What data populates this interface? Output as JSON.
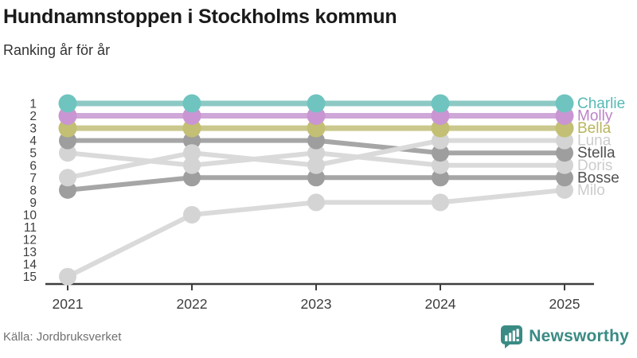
{
  "header": {
    "title": "Hundnamnstoppen i Stockholms kommun",
    "subtitle": "Ranking år för år"
  },
  "footer": {
    "source": "Källa: Jordbruksverket",
    "brand": "Newsworthy",
    "brand_color": "#3a8b84"
  },
  "chart_data": {
    "type": "line",
    "subtype": "bump-ranking",
    "x": [
      "2021",
      "2022",
      "2023",
      "2024",
      "2025"
    ],
    "series": [
      {
        "name": "Charlie",
        "values": [
          1,
          1,
          1,
          1,
          1
        ],
        "line_color": "#8cc9c5",
        "point_color": "#6fc4bf",
        "label_color": "#57bab3"
      },
      {
        "name": "Molly",
        "values": [
          2,
          2,
          2,
          2,
          2
        ],
        "line_color": "#cfa7d8",
        "point_color": "#c996d3",
        "label_color": "#bc82c8"
      },
      {
        "name": "Bella",
        "values": [
          3,
          3,
          3,
          3,
          3
        ],
        "line_color": "#cbc88d",
        "point_color": "#c3bf74",
        "label_color": "#b9b55c"
      },
      {
        "name": "Luna",
        "values": [
          7,
          5,
          6,
          4,
          4
        ],
        "line_color": "#dadada",
        "point_color": "#d4d4d4",
        "label_color": "#cccccc"
      },
      {
        "name": "Stella",
        "values": [
          4,
          4,
          4,
          5,
          5
        ],
        "line_color": "#a6a6a6",
        "point_color": "#9e9e9e",
        "label_color": "#515151"
      },
      {
        "name": "Doris",
        "values": [
          5,
          6,
          5,
          6,
          6
        ],
        "line_color": "#dadada",
        "point_color": "#d4d4d4",
        "label_color": "#cccccc"
      },
      {
        "name": "Bosse",
        "values": [
          8,
          7,
          7,
          7,
          7
        ],
        "line_color": "#a6a6a6",
        "point_color": "#9e9e9e",
        "label_color": "#515151"
      },
      {
        "name": "Milo",
        "values": [
          15,
          10,
          9,
          9,
          8
        ],
        "line_color": "#dadada",
        "point_color": "#d4d4d4",
        "label_color": "#cccccc"
      }
    ],
    "ylim": [
      1,
      15
    ],
    "yticks": [
      1,
      2,
      3,
      4,
      5,
      6,
      7,
      8,
      9,
      10,
      11,
      12,
      13,
      14,
      15
    ],
    "y_direction": "inverted-rank",
    "grid": false,
    "legend_position": "right-inline-labels",
    "axis_color": "#3d3d3d",
    "tick_label_color": "#3d3d3d"
  }
}
